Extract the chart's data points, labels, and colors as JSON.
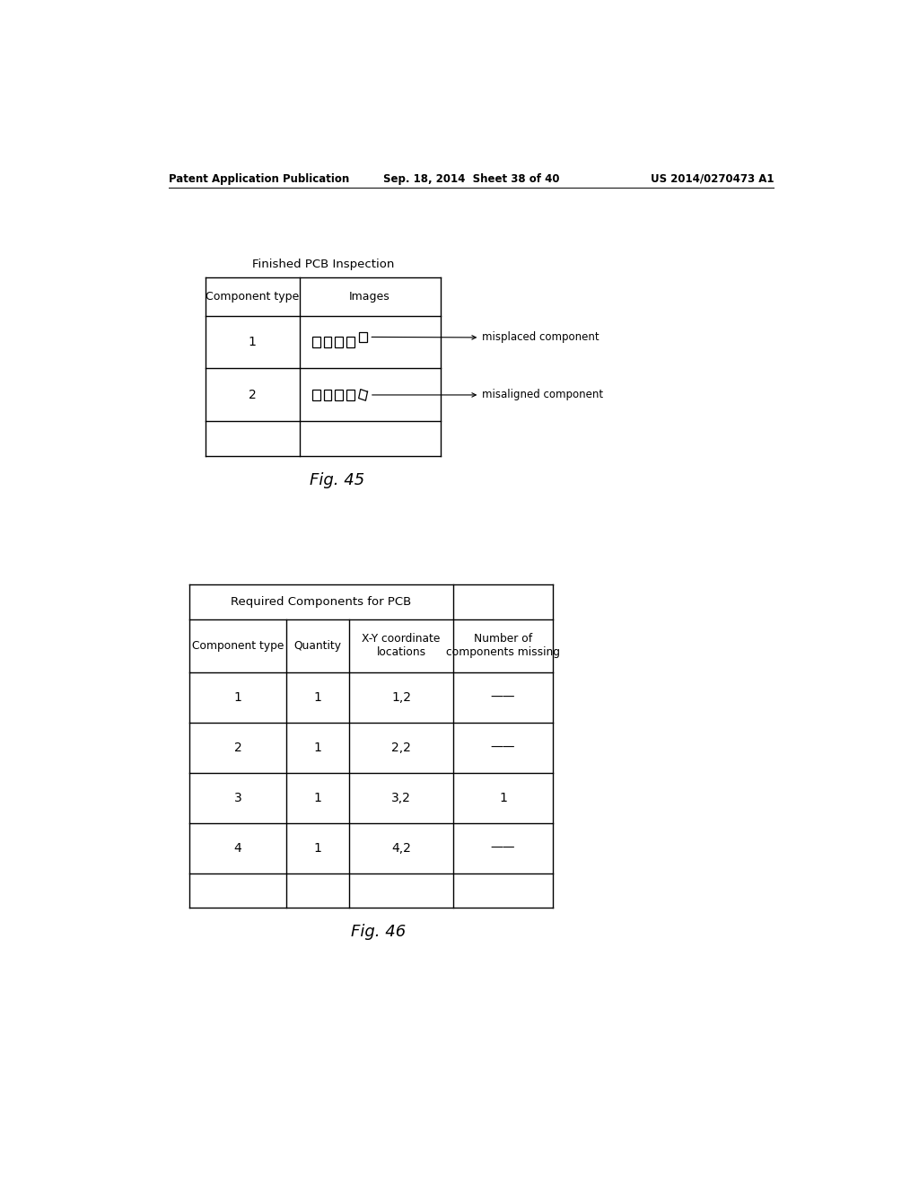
{
  "background_color": "#ffffff",
  "header_left": "Patent Application Publication",
  "header_center": "Sep. 18, 2014  Sheet 38 of 40",
  "header_right": "US 2014/0270473 A1",
  "header_fontsize": 8.5,
  "fig45_title": "Finished PCB Inspection",
  "fig45_label": "Fig. 45",
  "fig45_col_headers": [
    "Component type",
    "Images"
  ],
  "fig45_annotation1": "misplaced component",
  "fig45_annotation2": "misaligned component",
  "fig46_title": "Required Components for PCB",
  "fig46_label": "Fig. 46",
  "fig46_col_headers": [
    "Component type",
    "Quantity",
    "X-Y coordinate\nlocations",
    "Number of\ncomponents missing"
  ],
  "fig46_rows": [
    [
      "1",
      "1",
      "1,2",
      "——"
    ],
    [
      "2",
      "1",
      "2,2",
      "——"
    ],
    [
      "3",
      "1",
      "3,2",
      "1"
    ],
    [
      "4",
      "1",
      "4,2",
      "——"
    ],
    [
      "",
      "",
      "",
      ""
    ]
  ],
  "line_color": "#000000",
  "text_color": "#000000",
  "font_family": "DejaVu Sans"
}
